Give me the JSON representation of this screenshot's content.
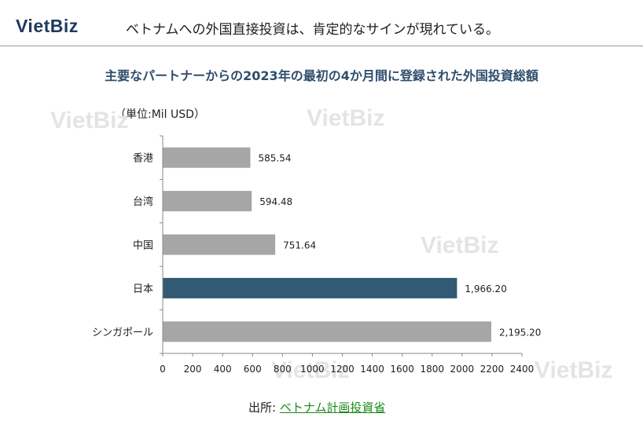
{
  "header": {
    "logo": "VietBiz",
    "headline": "ベトナムへの外国直接投資は、肯定的なサインが現れている。"
  },
  "watermark": "VietBiz",
  "colors": {
    "bar_default": "#a6a6a6",
    "bar_highlight": "#325a74",
    "title": "#2e4d6b",
    "source_link": "#1a8a1a"
  },
  "chart_data": {
    "type": "bar",
    "orientation": "horizontal",
    "title": "主要なパートナーからの2023年の最初の4か月間に登録された外国投資総額",
    "unit_label": "（単位:Mil USD）",
    "categories": [
      "香港",
      "台湾",
      "中国",
      "日本",
      "シンガポール"
    ],
    "values": [
      585.54,
      594.48,
      751.64,
      1966.2,
      2195.2
    ],
    "data_labels": [
      "585.54",
      "594.48",
      "751.64",
      "1,966.20",
      "2,195.20"
    ],
    "highlight_category": "日本",
    "xlim": [
      0,
      2400
    ],
    "xticks": [
      "0",
      "200",
      "400",
      "600",
      "800",
      "1000",
      "1200",
      "1400",
      "1600",
      "1800",
      "2000",
      "2200",
      "2400"
    ],
    "grid": false,
    "legend": "none"
  },
  "source": {
    "prefix": "出所: ",
    "link_text": "ベトナム計画投資省"
  }
}
